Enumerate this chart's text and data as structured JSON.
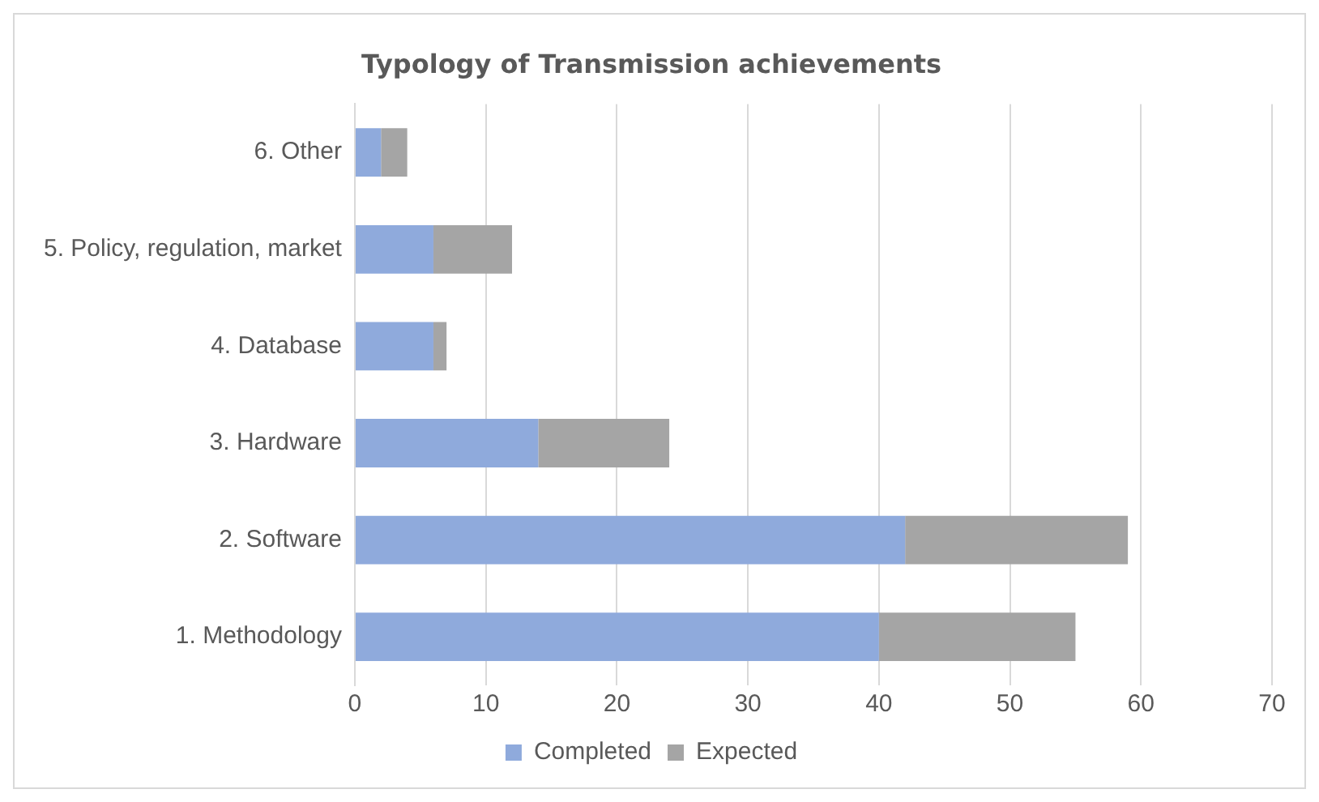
{
  "chart_data": {
    "type": "bar",
    "title": "Typology of Transmission achievements",
    "orientation": "horizontal",
    "stacked": true,
    "categories": [
      "6. Other",
      "5. Policy, regulation, market",
      "4. Database",
      "3. Hardware",
      "2. Software",
      "1. Methodology"
    ],
    "series": [
      {
        "name": "Completed",
        "color": "#8faadc",
        "values": [
          2,
          6,
          6,
          14,
          42,
          40
        ]
      },
      {
        "name": "Expected",
        "color": "#a5a5a5",
        "values": [
          2,
          6,
          1,
          10,
          17,
          15
        ]
      }
    ],
    "xlim": [
      0,
      70
    ],
    "xticks": [
      0,
      10,
      20,
      30,
      40,
      50,
      60,
      70
    ],
    "grid": "x",
    "legend": "bottom"
  }
}
